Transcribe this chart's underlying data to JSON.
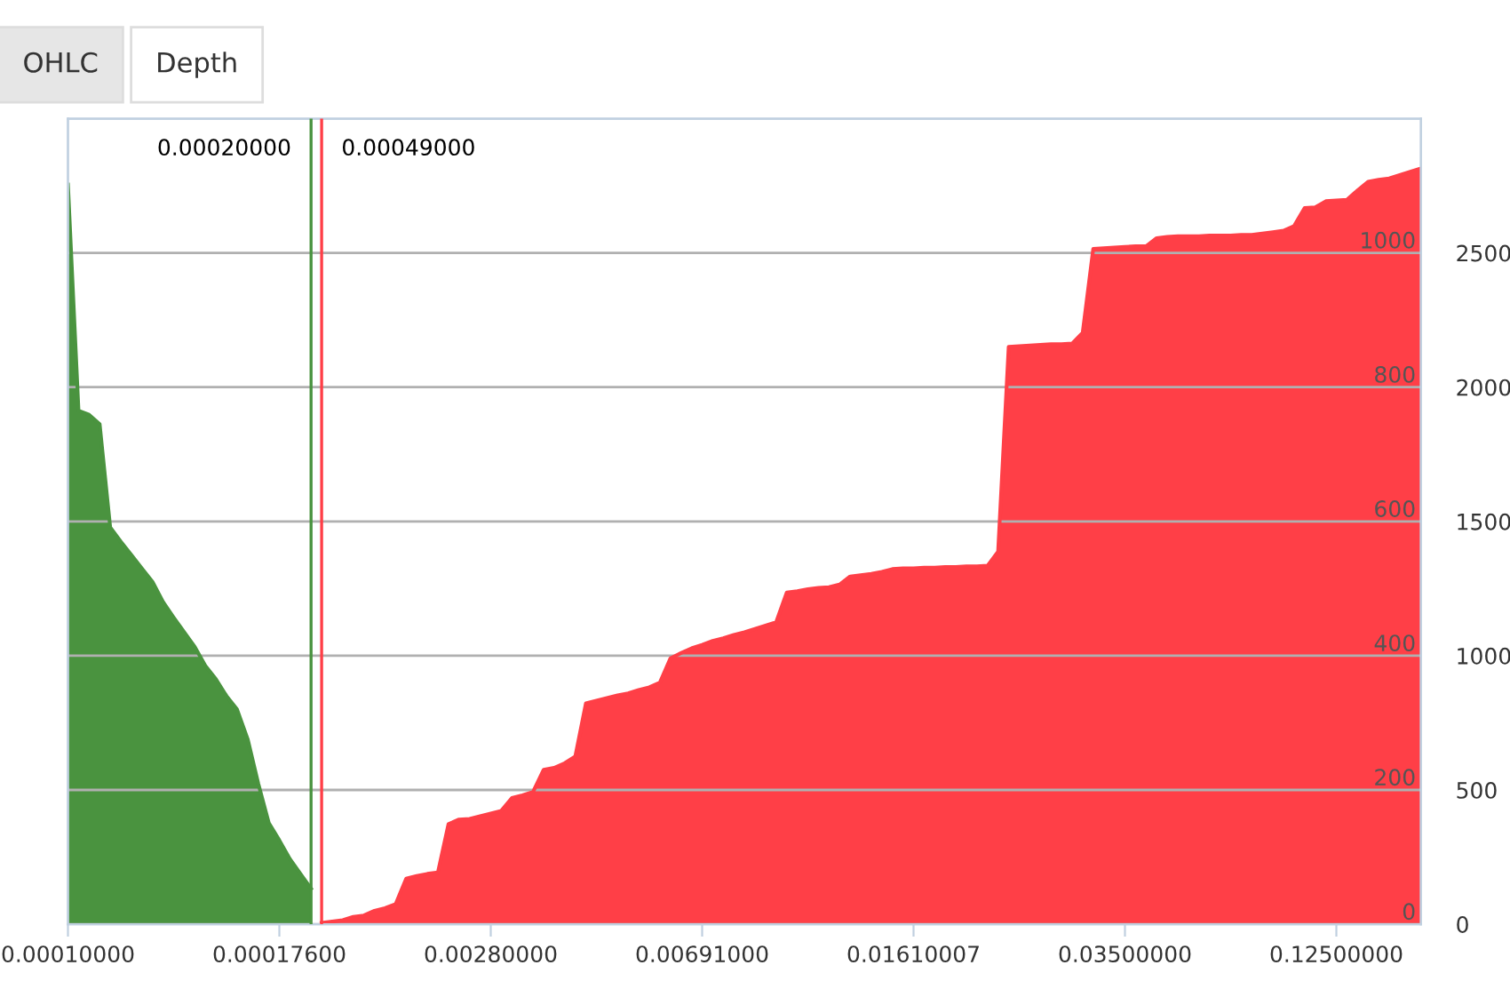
{
  "chart_data": {
    "type": "area",
    "categories": [
      "0.00010000",
      null,
      null,
      null,
      null,
      null,
      null,
      null,
      null,
      null,
      null,
      null,
      null,
      null,
      null,
      null,
      null,
      null,
      null,
      null,
      "0.00017600",
      null,
      null,
      null,
      null,
      null,
      null,
      null,
      null,
      null,
      null,
      null,
      null,
      null,
      null,
      null,
      null,
      null,
      null,
      null,
      "0.00280000",
      null,
      null,
      null,
      null,
      null,
      null,
      null,
      null,
      null,
      null,
      null,
      null,
      null,
      null,
      null,
      null,
      null,
      null,
      null,
      "0.00691000",
      null,
      null,
      null,
      null,
      null,
      null,
      null,
      null,
      null,
      null,
      null,
      null,
      null,
      null,
      null,
      null,
      null,
      null,
      null,
      "0.01610007",
      null,
      null,
      null,
      null,
      null,
      null,
      null,
      null,
      null,
      null,
      null,
      null,
      null,
      null,
      null,
      null,
      null,
      null,
      null,
      "0.03500000",
      null,
      null,
      null,
      null,
      null,
      null,
      null,
      null,
      null,
      null,
      null,
      null,
      null,
      null,
      null,
      null,
      null,
      null,
      null,
      "0.12500000",
      null,
      null,
      null,
      null,
      null,
      null,
      null,
      null
    ],
    "series": [
      {
        "color": "#4a933f",
        "values": [
          1102,
          765,
          759,
          745,
          591,
          570,
          550,
          530,
          510,
          480,
          457,
          435,
          413,
          385,
          365,
          340,
          320,
          276,
          210,
          151,
          125,
          97,
          75,
          53,
          null,
          null,
          null,
          null,
          null,
          null,
          null,
          null,
          null,
          null,
          null,
          null,
          null,
          null,
          null,
          null,
          null,
          null,
          null,
          null,
          null,
          null,
          null,
          null,
          null,
          null,
          null,
          null,
          null,
          null,
          null,
          null,
          null,
          null,
          null,
          null,
          null,
          null,
          null,
          null,
          null,
          null,
          null,
          null,
          null,
          null,
          null,
          null,
          null,
          null,
          null,
          null,
          null,
          null,
          null,
          null,
          null,
          null,
          null,
          null,
          null,
          null,
          null,
          null,
          null,
          null,
          null,
          null,
          null,
          null,
          null,
          null,
          null,
          null,
          null,
          null,
          null,
          null,
          null,
          null,
          null,
          null,
          null,
          null,
          null,
          null,
          null,
          null,
          null,
          null,
          null,
          null,
          null,
          null,
          null,
          null,
          null,
          null,
          null,
          null,
          null,
          null,
          null,
          null,
          null
        ]
      },
      {
        "color": "#ff3f47",
        "values": [
          null,
          null,
          null,
          null,
          null,
          null,
          null,
          null,
          null,
          null,
          null,
          null,
          null,
          null,
          null,
          null,
          null,
          null,
          null,
          null,
          null,
          null,
          null,
          null,
          2,
          4,
          6,
          11,
          13,
          20,
          24,
          30,
          68,
          72,
          75,
          77,
          149,
          156,
          157,
          161,
          165,
          169,
          188,
          192,
          197,
          230,
          233,
          240,
          250,
          329,
          333,
          337,
          341,
          344,
          349,
          353,
          360,
          396,
          404,
          411,
          416,
          422,
          426,
          431,
          435,
          440,
          445,
          450,
          494,
          496,
          499,
          501,
          502,
          506,
          518,
          520,
          522,
          525,
          529,
          530,
          530,
          531,
          531,
          532,
          532,
          533,
          533,
          534,
          555,
          860,
          861,
          862,
          863,
          864,
          864,
          865,
          881,
          1006,
          1007,
          1008,
          1009,
          1010,
          1010,
          1022,
          1024,
          1025,
          1025,
          1025,
          1026,
          1026,
          1026,
          1027,
          1027,
          1029,
          1031,
          1033,
          1040,
          1067,
          1068,
          1077,
          1078,
          1079,
          1093,
          1106,
          1109,
          1111,
          1116,
          1121,
          1126
        ]
      }
    ],
    "ylim": [
      0,
      1200
    ],
    "yticks": [
      0,
      200,
      400,
      600,
      800,
      1000
    ],
    "y2lim": [
      0,
      3000
    ],
    "y2ticks": [
      0,
      500,
      1000,
      1500,
      2000,
      2500
    ],
    "grid": "y",
    "annotations": [
      "OHLC",
      "Depth",
      "0.00020000",
      "0.00049000"
    ]
  }
}
